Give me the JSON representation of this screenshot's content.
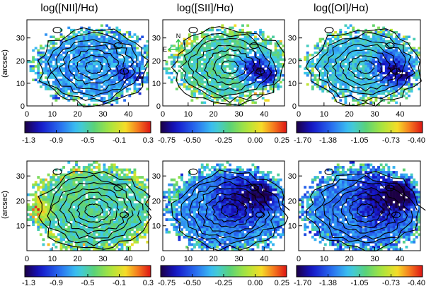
{
  "figure": {
    "panel_titles": [
      "log([NII]/Hα)",
      "log([SII]/Hα)",
      "log([OI]/Hα)"
    ],
    "ylabel": "(arcsec)"
  },
  "chart_data": [
    {
      "type": "heatmap",
      "title": "log([NII]/Hα)",
      "ylabel": "(arcsec)",
      "x_ticks": [
        "0",
        "10",
        "20",
        "30",
        "40"
      ],
      "y_ticks": [
        "0",
        "10",
        "20",
        "30"
      ],
      "colorbar_ticks": [
        "-1.3",
        "-0.9",
        "-0.5",
        "-0.1",
        "0.3"
      ],
      "colorbar_range": [
        -1.3,
        0.3
      ],
      "row": 1,
      "seed": 11,
      "bias": 0.35,
      "patch": [
        [
          38,
          14,
          5,
          -0.25
        ],
        [
          44,
          12,
          3,
          -0.35
        ]
      ],
      "mask_density": 0.35,
      "compass": false
    },
    {
      "type": "heatmap",
      "title": "log([SII]/Hα)",
      "ylabel": "",
      "x_ticks": [
        "0",
        "10",
        "20",
        "30",
        "40"
      ],
      "y_ticks": [
        "0",
        "10",
        "20",
        "30"
      ],
      "colorbar_ticks": [
        "-0.75",
        "-0.50",
        "-0.25",
        "0.00",
        "0.25"
      ],
      "colorbar_range": [
        -0.75,
        0.25
      ],
      "row": 1,
      "seed": 23,
      "bias": 0.5,
      "patch": [
        [
          36,
          16,
          10,
          -0.45
        ],
        [
          42,
          12,
          6,
          -0.3
        ]
      ],
      "mask_density": 0.35,
      "compass": true,
      "compass_labels": {
        "north": "N",
        "east": "E"
      }
    },
    {
      "type": "heatmap",
      "title": "log([OI]/Hα)",
      "ylabel": "",
      "x_ticks": [
        "0",
        "10",
        "20",
        "30",
        "40"
      ],
      "y_ticks": [
        "0",
        "10",
        "20",
        "30"
      ],
      "colorbar_ticks": [
        "-1.70",
        "-1.38",
        "-1.05",
        "-0.73",
        "-0.40"
      ],
      "colorbar_range": [
        -1.7,
        -0.4
      ],
      "row": 1,
      "seed": 37,
      "bias": 0.42,
      "patch": [
        [
          36,
          16,
          10,
          -0.4
        ],
        [
          42,
          12,
          6,
          -0.25
        ]
      ],
      "mask_density": 0.35,
      "compass": false
    },
    {
      "type": "heatmap",
      "title": "",
      "ylabel": "(arcsec)",
      "x_ticks": [
        "0",
        "10",
        "20",
        "30",
        "40"
      ],
      "y_ticks": [
        "10",
        "20",
        "30"
      ],
      "colorbar_ticks": [
        "-1.3",
        "-0.9",
        "-0.5",
        "-0.1",
        "0.3"
      ],
      "colorbar_range": [
        -1.3,
        0.3
      ],
      "row": 2,
      "seed": 41,
      "bias": 0.5,
      "patch": [
        [
          6,
          16,
          6,
          0.3
        ],
        [
          20,
          26,
          12,
          0.05
        ]
      ],
      "mask_density": 0.15,
      "compass": false
    },
    {
      "type": "heatmap",
      "title": "",
      "ylabel": "",
      "x_ticks": [
        "0",
        "10",
        "20",
        "30",
        "40"
      ],
      "y_ticks": [
        "10",
        "20",
        "30"
      ],
      "colorbar_ticks": [
        "-0.75",
        "-0.50",
        "-0.25",
        "0.00",
        "0.25"
      ],
      "colorbar_range": [
        -0.75,
        0.25
      ],
      "row": 2,
      "seed": 53,
      "bias": 0.32,
      "patch": [
        [
          30,
          20,
          14,
          -0.3
        ],
        [
          40,
          22,
          8,
          -0.3
        ]
      ],
      "mask_density": 0.15,
      "compass": true,
      "compass_labels": {
        "north": "",
        "east": ""
      }
    },
    {
      "type": "heatmap",
      "title": "",
      "ylabel": "",
      "x_ticks": [
        "0",
        "10",
        "20",
        "30",
        "40"
      ],
      "y_ticks": [
        "10",
        "20",
        "30"
      ],
      "colorbar_ticks": [
        "-1.70",
        "-1.38",
        "-1.05",
        "-0.73",
        "-0.40"
      ],
      "colorbar_range": [
        -1.7,
        -0.4
      ],
      "row": 2,
      "seed": 67,
      "bias": 0.3,
      "patch": [
        [
          32,
          20,
          14,
          -0.3
        ],
        [
          40,
          22,
          8,
          -0.35
        ]
      ],
      "mask_density": 0.15,
      "compass": false
    }
  ]
}
